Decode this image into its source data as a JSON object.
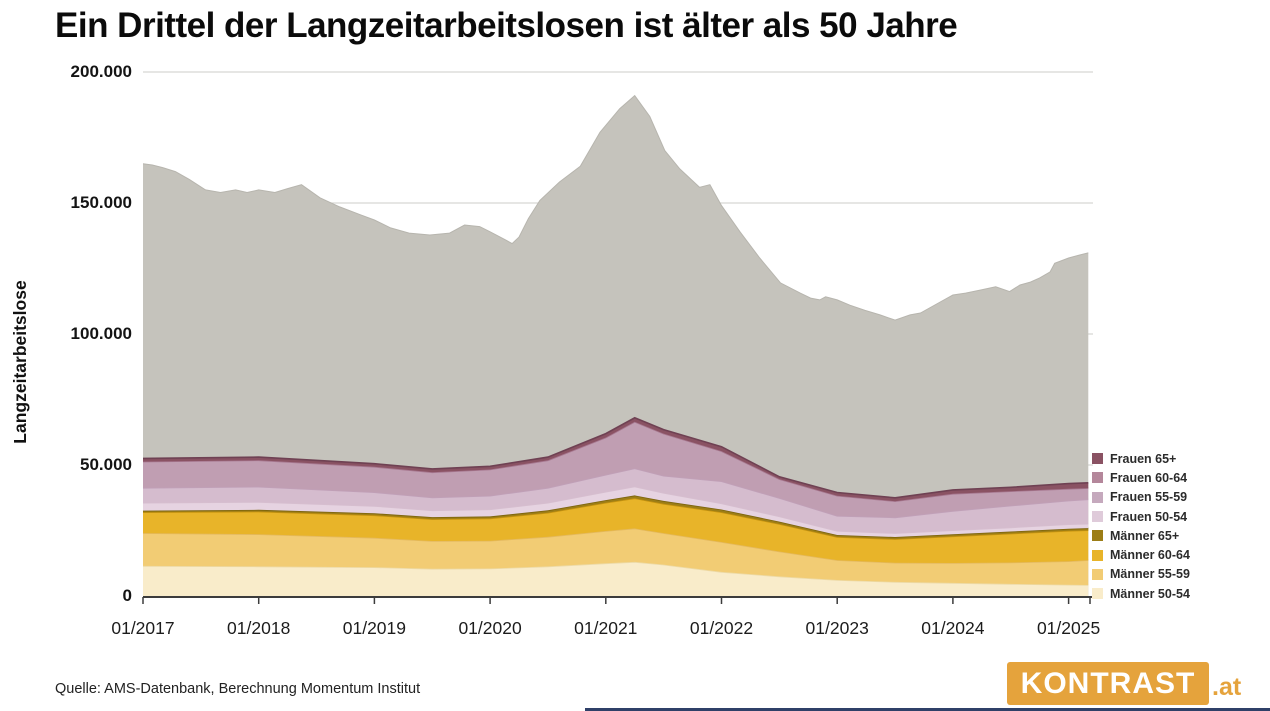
{
  "title": "Ein Drittel der Langzeitarbeitslosen ist älter als 50 Jahre",
  "source_note": "Quelle: AMS-Datenbank, Berechnung Momentum Institut",
  "logo": {
    "name": "KONTRAST",
    "tld": ".at",
    "bg_color": "#E5A33C",
    "text_color": "#FFFFFF"
  },
  "colors": {
    "background": "#FFFFFF",
    "gridline": "#D8D7D3",
    "axis": "#3C3C3C",
    "total_area": "#C5C3BC",
    "bottom_accent_bar": "#2F4068"
  },
  "legend": {
    "position": "right",
    "items": [
      {
        "label": "Frauen 65+",
        "color": "#8A5263"
      },
      {
        "label": "Frauen 60-64",
        "color": "#B4879B"
      },
      {
        "label": "Frauen 55-59",
        "color": "#C5A9BD"
      },
      {
        "label": "Frauen 50-54",
        "color": "#DFCBDA"
      },
      {
        "label": "Männer 65+",
        "color": "#9C7D16"
      },
      {
        "label": "Männer 60-64",
        "color": "#E8B429"
      },
      {
        "label": "Männer 55-59",
        "color": "#F2CC74"
      },
      {
        "label": "Männer 50-54",
        "color": "#F9ECCA"
      }
    ]
  },
  "chart_data": {
    "type": "area",
    "stacked": true,
    "title": "Ein Drittel der Langzeitarbeitslosen ist älter als 50 Jahre",
    "xlabel": "",
    "ylabel": "Langzeitarbeitslose",
    "xlim": [
      2017.0,
      2025.17
    ],
    "ylim": [
      0,
      200000
    ],
    "grid": "horizontal",
    "legend_position": "right",
    "yticks": [
      {
        "value": 0,
        "label": "0"
      },
      {
        "value": 50000,
        "label": "50.000"
      },
      {
        "value": 100000,
        "label": "100.000"
      },
      {
        "value": 150000,
        "label": "150.000"
      },
      {
        "value": 200000,
        "label": "200.000"
      }
    ],
    "xticks": [
      {
        "value": 2017,
        "label": "01/2017"
      },
      {
        "value": 2018,
        "label": "01/2018"
      },
      {
        "value": 2019,
        "label": "01/2019"
      },
      {
        "value": 2020,
        "label": "01/2020"
      },
      {
        "value": 2021,
        "label": "01/2021"
      },
      {
        "value": 2022,
        "label": "01/2022"
      },
      {
        "value": 2023,
        "label": "01/2023"
      },
      {
        "value": 2024,
        "label": "01/2024"
      },
      {
        "value": 2025,
        "label": "01/2025"
      }
    ],
    "total": {
      "name": "Langzeitarbeitslose gesamt",
      "color": "#C5C3BC",
      "edge_color": "#B7B5AE",
      "points": [
        [
          2017.0,
          165000
        ],
        [
          2017.08,
          164500
        ],
        [
          2017.17,
          163500
        ],
        [
          2017.28,
          162000
        ],
        [
          2017.4,
          159000
        ],
        [
          2017.54,
          155000
        ],
        [
          2017.67,
          154000
        ],
        [
          2017.8,
          155000
        ],
        [
          2017.9,
          154000
        ],
        [
          2018.0,
          155000
        ],
        [
          2018.14,
          154000
        ],
        [
          2018.25,
          155500
        ],
        [
          2018.37,
          157000
        ],
        [
          2018.53,
          152000
        ],
        [
          2018.7,
          148500
        ],
        [
          2018.88,
          145500
        ],
        [
          2019.0,
          143500
        ],
        [
          2019.14,
          140500
        ],
        [
          2019.3,
          138500
        ],
        [
          2019.48,
          137800
        ],
        [
          2019.65,
          138500
        ],
        [
          2019.78,
          141600
        ],
        [
          2019.91,
          141000
        ],
        [
          2020.0,
          139000
        ],
        [
          2020.13,
          136000
        ],
        [
          2020.19,
          134500
        ],
        [
          2020.25,
          137000
        ],
        [
          2020.33,
          144000
        ],
        [
          2020.43,
          151000
        ],
        [
          2020.6,
          158000
        ],
        [
          2020.78,
          164000
        ],
        [
          2020.95,
          177000
        ],
        [
          2021.12,
          186000
        ],
        [
          2021.25,
          191000
        ],
        [
          2021.38,
          183000
        ],
        [
          2021.51,
          170000
        ],
        [
          2021.64,
          163000
        ],
        [
          2021.81,
          156000
        ],
        [
          2021.9,
          157000
        ],
        [
          2022.0,
          149000
        ],
        [
          2022.16,
          139000
        ],
        [
          2022.33,
          129000
        ],
        [
          2022.51,
          119500
        ],
        [
          2022.68,
          115600
        ],
        [
          2022.77,
          113700
        ],
        [
          2022.85,
          113000
        ],
        [
          2022.9,
          114200
        ],
        [
          2023.0,
          113000
        ],
        [
          2023.11,
          111000
        ],
        [
          2023.24,
          109000
        ],
        [
          2023.37,
          107300
        ],
        [
          2023.5,
          105300
        ],
        [
          2023.63,
          107300
        ],
        [
          2023.72,
          108000
        ],
        [
          2023.89,
          112200
        ],
        [
          2024.0,
          114900
        ],
        [
          2024.11,
          115600
        ],
        [
          2024.24,
          116800
        ],
        [
          2024.37,
          118000
        ],
        [
          2024.49,
          116200
        ],
        [
          2024.58,
          118700
        ],
        [
          2024.67,
          119800
        ],
        [
          2024.75,
          121400
        ],
        [
          2024.84,
          123700
        ],
        [
          2024.88,
          127000
        ],
        [
          2025.0,
          129000
        ],
        [
          2025.1,
          130200
        ],
        [
          2025.17,
          131000
        ]
      ]
    },
    "keypoints_x": [
      2017.0,
      2018.0,
      2019.0,
      2019.5,
      2020.0,
      2020.5,
      2021.0,
      2021.25,
      2021.5,
      2022.0,
      2022.5,
      2023.0,
      2023.5,
      2024.0,
      2024.5,
      2025.0,
      2025.17
    ],
    "series": [
      {
        "id": "maenner_50_54",
        "name": "Männer 50-54",
        "color": "#F9ECCA",
        "edge_color": "#EDDAA6",
        "values": [
          11500,
          11300,
          11000,
          10400,
          10500,
          11300,
          12500,
          13000,
          12000,
          9200,
          7500,
          6100,
          5400,
          5000,
          4600,
          4300,
          4200
        ]
      },
      {
        "id": "maenner_55_59",
        "name": "Männer 55-59",
        "color": "#F2CC74",
        "edge_color": "#E4B95F",
        "values": [
          12500,
          12300,
          11200,
          10600,
          10600,
          11300,
          12300,
          12800,
          12000,
          11400,
          9500,
          7600,
          7300,
          7600,
          8200,
          9000,
          9500
        ]
      },
      {
        "id": "maenner_60_64",
        "name": "Männer 60-64",
        "color": "#E8B429",
        "edge_color": "#C6930F",
        "values": [
          8000,
          8600,
          8600,
          8300,
          8500,
          9200,
          10800,
          11500,
          11200,
          11400,
          10500,
          8800,
          9000,
          10200,
          11000,
          11600,
          11400
        ]
      },
      {
        "id": "maenner_65",
        "name": "Männer 65+",
        "color": "#9C7D16",
        "edge_color": "#7C640D",
        "values": [
          600,
          700,
          800,
          800,
          800,
          900,
          1000,
          1100,
          1100,
          1000,
          900,
          800,
          800,
          800,
          800,
          800,
          800
        ]
      },
      {
        "id": "frauen_50_54",
        "name": "Frauen 50-54",
        "color": "#E6D3E1",
        "edge_color": "#D6BECF",
        "values": [
          3000,
          3000,
          2800,
          2600,
          2700,
          2900,
          3200,
          3400,
          3100,
          2400,
          2000,
          1600,
          1500,
          1500,
          1600,
          1700,
          1700
        ]
      },
      {
        "id": "frauen_55_59",
        "name": "Frauen 55-59",
        "color": "#D5BCCE",
        "edge_color": "#C0A0B8",
        "values": [
          5700,
          5800,
          5200,
          4900,
          5200,
          5700,
          6500,
          6900,
          6500,
          8400,
          7000,
          5700,
          6000,
          7400,
          8300,
          9000,
          9300
        ]
      },
      {
        "id": "frauen_60_64",
        "name": "Frauen 60-64",
        "color": "#C09EB2",
        "edge_color": "#A77890",
        "values": [
          10000,
          10100,
          9700,
          9600,
          10000,
          10500,
          14200,
          17800,
          16100,
          11500,
          7200,
          7700,
          6200,
          6500,
          5500,
          4500,
          4300
        ]
      },
      {
        "id": "frauen_65",
        "name": "Frauen 65+",
        "color": "#8A5263",
        "edge_color": "#6F4153",
        "values": [
          1200,
          1200,
          1200,
          1300,
          1200,
          1200,
          1500,
          1500,
          1500,
          1700,
          900,
          1200,
          1300,
          1500,
          1500,
          2000,
          2000
        ]
      }
    ]
  }
}
